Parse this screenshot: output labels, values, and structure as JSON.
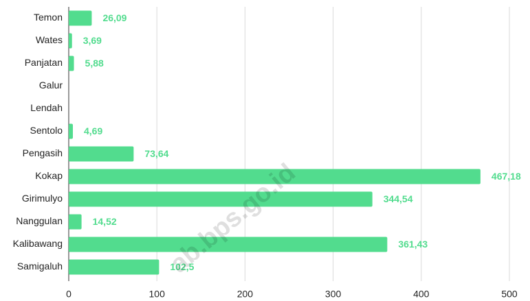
{
  "chart_data": {
    "type": "hbar",
    "categories": [
      "Temon",
      "Wates",
      "Panjatan",
      "Galur",
      "Lendah",
      "Sentolo",
      "Pengasih",
      "Kokap",
      "Girimulyo",
      "Nanggulan",
      "Kalibawang",
      "Samigaluh"
    ],
    "values": [
      26.09,
      3.69,
      5.88,
      null,
      null,
      4.69,
      73.64,
      467.18,
      344.54,
      14.52,
      361.43,
      102.5
    ],
    "value_labels": [
      "26,09",
      "3,69",
      "5,88",
      null,
      null,
      "4,69",
      "73,64",
      "467,18",
      "344,54",
      "14,52",
      "361,43",
      "102,5"
    ],
    "color": "#52dc8e",
    "xlim": [
      0,
      500
    ],
    "xticks": [
      0,
      100,
      200,
      300,
      400,
      500
    ],
    "grid": true,
    "watermark": "ab.bps.go.id"
  }
}
